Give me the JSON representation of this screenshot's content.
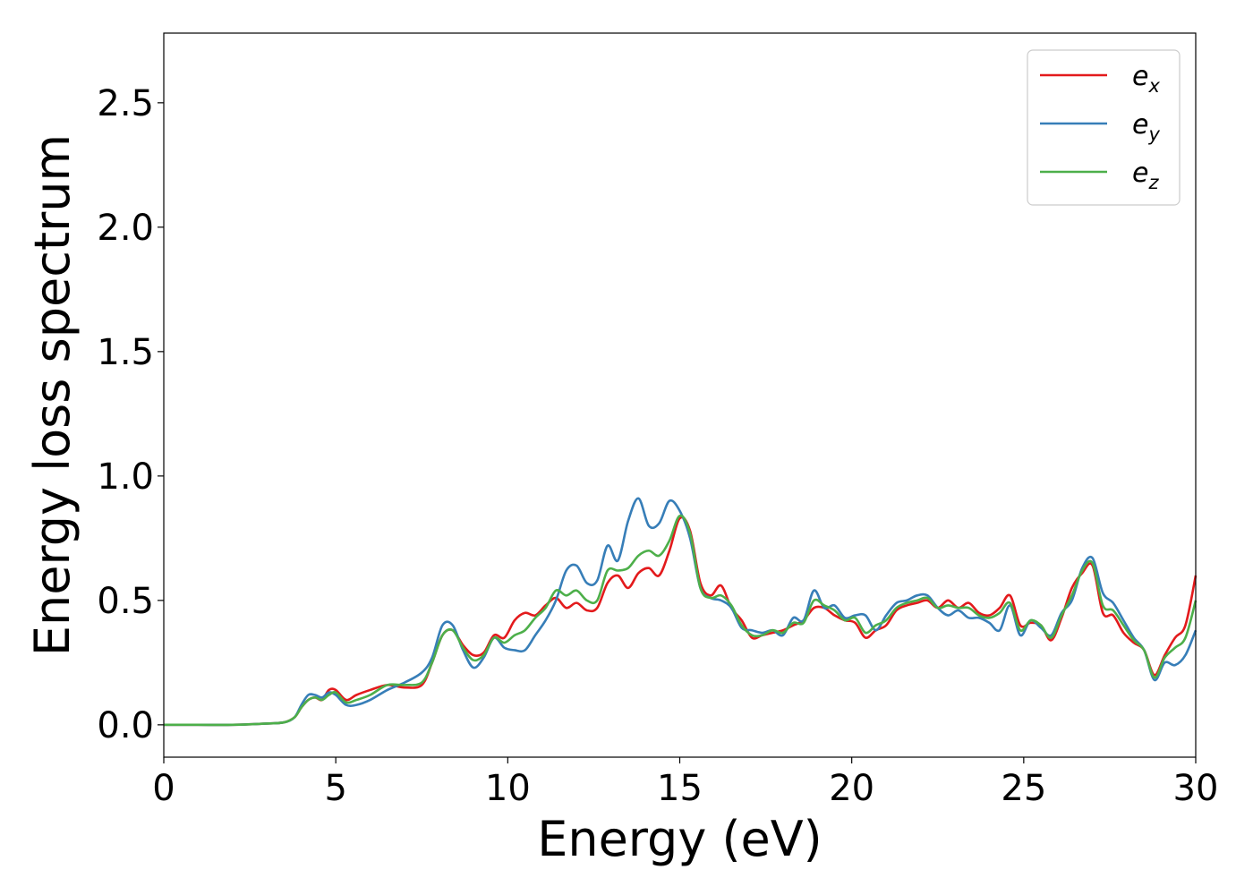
{
  "chart_data": {
    "type": "line",
    "xlabel": "Energy (eV)",
    "ylabel": "Energy loss spectrum",
    "xlim": [
      0,
      30
    ],
    "ylim": [
      -0.13,
      2.78
    ],
    "xticks": [
      0,
      5,
      10,
      15,
      20,
      25,
      30
    ],
    "xtick_labels": [
      "0",
      "5",
      "10",
      "15",
      "20",
      "25",
      "30"
    ],
    "yticks": [
      0.0,
      0.5,
      1.0,
      1.5,
      2.0,
      2.5
    ],
    "ytick_labels": [
      "0.0",
      "0.5",
      "1.0",
      "1.5",
      "2.0",
      "2.5"
    ],
    "grid": false,
    "legend_position": "top-right",
    "x": [
      0,
      1,
      2,
      3,
      3.5,
      3.8,
      4.0,
      4.2,
      4.4,
      4.6,
      4.8,
      5.0,
      5.3,
      5.6,
      6.0,
      6.5,
      7.0,
      7.5,
      7.8,
      8.1,
      8.4,
      8.7,
      9.0,
      9.3,
      9.6,
      9.9,
      10.2,
      10.5,
      10.8,
      11.1,
      11.4,
      11.7,
      12.0,
      12.3,
      12.6,
      12.9,
      13.2,
      13.5,
      13.8,
      14.1,
      14.4,
      14.7,
      15.0,
      15.3,
      15.6,
      15.9,
      16.2,
      16.5,
      16.8,
      17.1,
      17.4,
      17.7,
      18.0,
      18.3,
      18.6,
      18.9,
      19.2,
      19.5,
      19.8,
      20.1,
      20.4,
      20.7,
      21.0,
      21.3,
      21.6,
      21.9,
      22.2,
      22.5,
      22.8,
      23.1,
      23.4,
      23.7,
      24.0,
      24.3,
      24.6,
      24.9,
      25.2,
      25.5,
      25.8,
      26.1,
      26.4,
      26.7,
      27.0,
      27.3,
      27.6,
      27.9,
      28.2,
      28.5,
      28.8,
      29.1,
      29.4,
      29.7,
      30.0
    ],
    "series": [
      {
        "name": "e_x",
        "label_base": "e",
        "label_sub": "x",
        "color": "#e31a1c",
        "values": [
          0,
          0,
          0,
          0.005,
          0.01,
          0.03,
          0.07,
          0.1,
          0.11,
          0.1,
          0.14,
          0.14,
          0.1,
          0.12,
          0.14,
          0.16,
          0.15,
          0.16,
          0.25,
          0.36,
          0.38,
          0.32,
          0.28,
          0.29,
          0.36,
          0.35,
          0.42,
          0.45,
          0.44,
          0.48,
          0.51,
          0.47,
          0.49,
          0.46,
          0.47,
          0.57,
          0.6,
          0.55,
          0.61,
          0.63,
          0.6,
          0.7,
          0.83,
          0.78,
          0.57,
          0.52,
          0.56,
          0.47,
          0.42,
          0.35,
          0.36,
          0.37,
          0.38,
          0.4,
          0.42,
          0.47,
          0.47,
          0.44,
          0.42,
          0.41,
          0.35,
          0.38,
          0.4,
          0.46,
          0.48,
          0.49,
          0.5,
          0.47,
          0.5,
          0.47,
          0.49,
          0.45,
          0.44,
          0.47,
          0.52,
          0.4,
          0.41,
          0.4,
          0.34,
          0.43,
          0.55,
          0.61,
          0.64,
          0.45,
          0.44,
          0.37,
          0.33,
          0.3,
          0.2,
          0.28,
          0.35,
          0.4,
          0.6
        ]
      },
      {
        "name": "e_y",
        "label_base": "e",
        "label_sub": "y",
        "color": "#377eb8",
        "values": [
          0,
          0,
          0,
          0.005,
          0.01,
          0.03,
          0.08,
          0.12,
          0.12,
          0.11,
          0.13,
          0.12,
          0.08,
          0.08,
          0.1,
          0.14,
          0.17,
          0.21,
          0.27,
          0.4,
          0.4,
          0.3,
          0.23,
          0.27,
          0.35,
          0.31,
          0.3,
          0.3,
          0.36,
          0.42,
          0.5,
          0.62,
          0.64,
          0.57,
          0.58,
          0.72,
          0.66,
          0.82,
          0.91,
          0.8,
          0.81,
          0.9,
          0.86,
          0.75,
          0.55,
          0.51,
          0.5,
          0.47,
          0.39,
          0.38,
          0.37,
          0.38,
          0.36,
          0.43,
          0.42,
          0.54,
          0.47,
          0.48,
          0.43,
          0.44,
          0.44,
          0.38,
          0.44,
          0.49,
          0.5,
          0.52,
          0.52,
          0.47,
          0.44,
          0.46,
          0.43,
          0.43,
          0.41,
          0.38,
          0.48,
          0.36,
          0.42,
          0.39,
          0.36,
          0.45,
          0.5,
          0.63,
          0.67,
          0.53,
          0.49,
          0.42,
          0.35,
          0.3,
          0.18,
          0.25,
          0.24,
          0.28,
          0.38
        ]
      },
      {
        "name": "e_z",
        "label_base": "e",
        "label_sub": "z",
        "color": "#4daf4a",
        "values": [
          0,
          0,
          0,
          0.005,
          0.01,
          0.03,
          0.07,
          0.1,
          0.11,
          0.1,
          0.12,
          0.13,
          0.09,
          0.1,
          0.12,
          0.16,
          0.16,
          0.17,
          0.25,
          0.36,
          0.38,
          0.31,
          0.26,
          0.28,
          0.35,
          0.33,
          0.36,
          0.38,
          0.43,
          0.47,
          0.54,
          0.52,
          0.54,
          0.5,
          0.5,
          0.62,
          0.62,
          0.63,
          0.68,
          0.7,
          0.68,
          0.74,
          0.84,
          0.77,
          0.55,
          0.51,
          0.52,
          0.48,
          0.4,
          0.36,
          0.36,
          0.38,
          0.37,
          0.41,
          0.41,
          0.5,
          0.48,
          0.46,
          0.42,
          0.43,
          0.37,
          0.4,
          0.42,
          0.47,
          0.49,
          0.5,
          0.51,
          0.47,
          0.48,
          0.47,
          0.47,
          0.44,
          0.43,
          0.45,
          0.49,
          0.38,
          0.42,
          0.4,
          0.35,
          0.44,
          0.52,
          0.62,
          0.65,
          0.48,
          0.46,
          0.4,
          0.34,
          0.3,
          0.19,
          0.27,
          0.31,
          0.35,
          0.5
        ]
      }
    ]
  }
}
